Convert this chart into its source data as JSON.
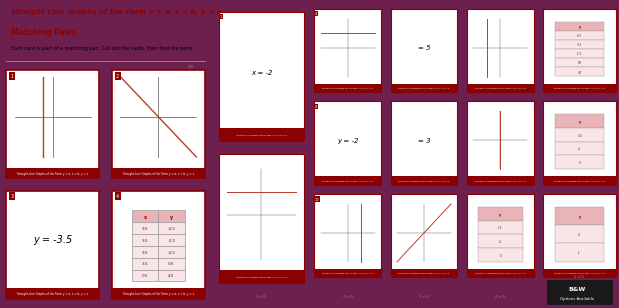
{
  "bg_color": "#6d1f4e",
  "page_bg": "#ffffff",
  "card_border": "#8b0000",
  "card_footer_bg": "#8b0000",
  "footer_text_color": "#ffffff",
  "footer_text": "Straight-Line Graphs of the Form y = a, x = b, y = x",
  "title_line1": "Straight-Line Graphs of the Form y = a, x = b, y = x",
  "title_line2": "Matching Pairs",
  "subtitle_text": "Each card is part of a matching pair. Cut out the cards, then find the pairs.",
  "line_color": "#c0392b",
  "axis_color": "#555555",
  "grid_color": "#cccccc",
  "number_color": "#8b0000",
  "table_header_bg": "#e8b4b8",
  "table_row_bg": "#f9e4e6",
  "bw_badge_bg": "#1a1a1a",
  "bw_badge_text": "#ffffff"
}
